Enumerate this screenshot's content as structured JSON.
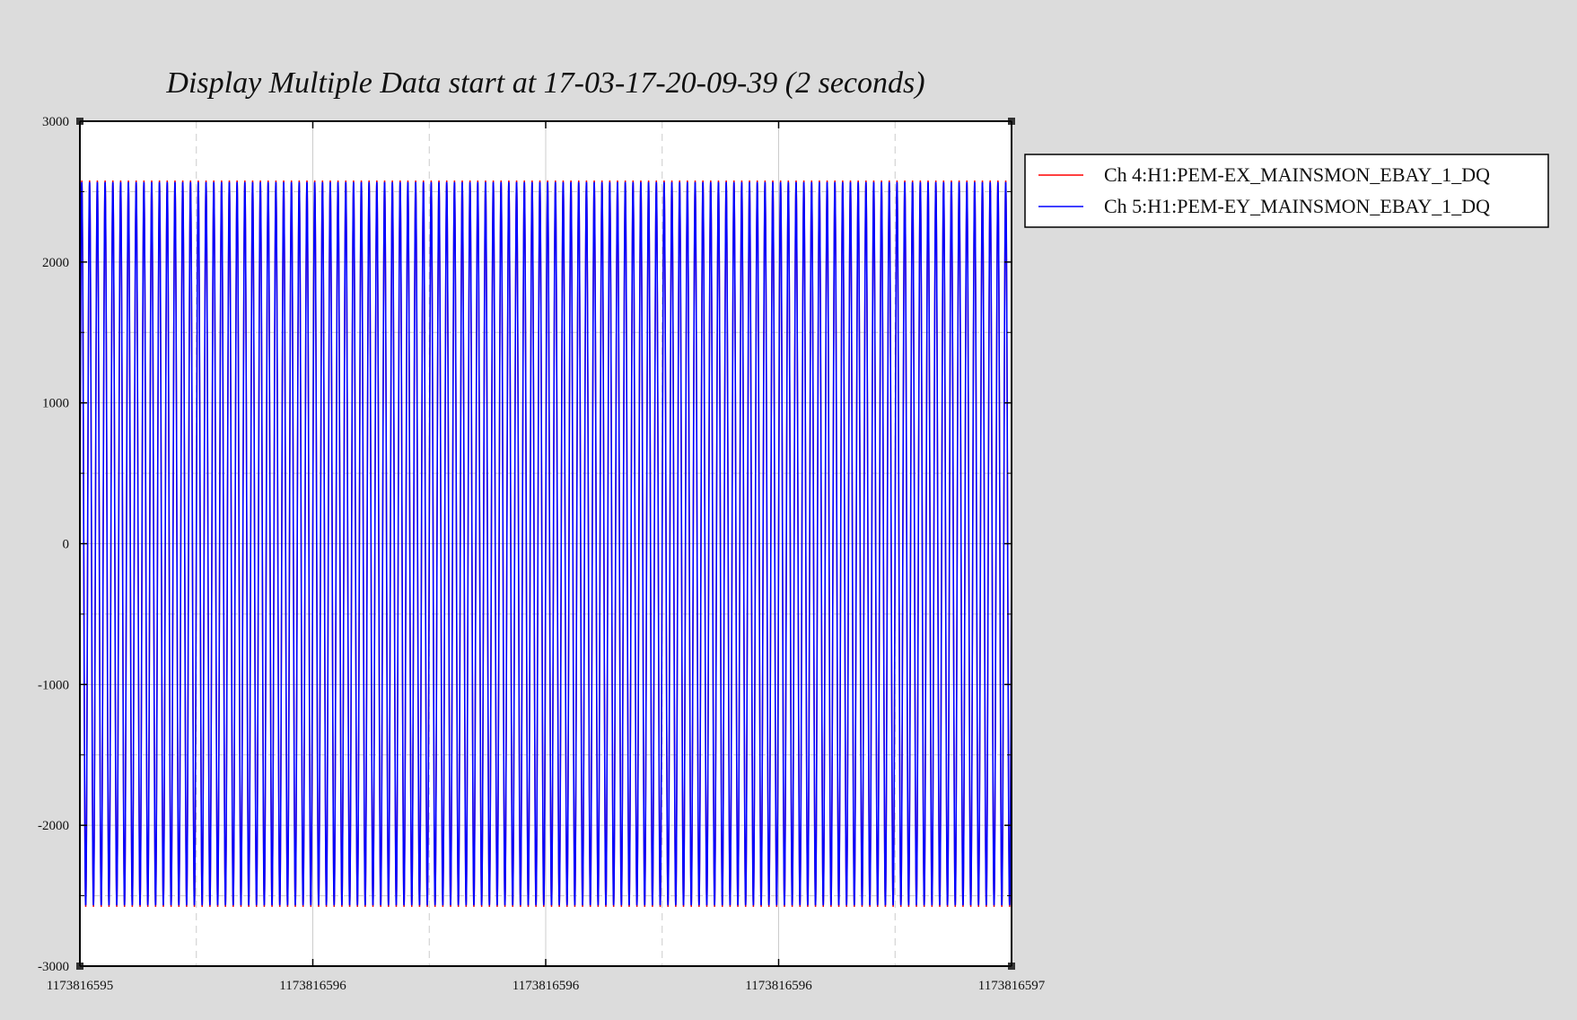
{
  "chart_data": {
    "type": "line",
    "title": "Display Multiple Data start at 17-03-17-20-09-39 (2 seconds)",
    "xlabel": "",
    "ylabel": "",
    "xlim": [
      1173816595,
      1173816597
    ],
    "ylim": [
      -3000,
      3000
    ],
    "x_tick_labels": [
      "1173816595",
      "1173816596",
      "1173816596",
      "1173816596",
      "1173816597"
    ],
    "y_ticks": [
      3000,
      2000,
      1000,
      0,
      -1000,
      -2000,
      -3000
    ],
    "y_tick_labels": [
      "3000",
      "2000",
      "1000",
      "0",
      "-1000",
      "-2000",
      "-3000"
    ],
    "grid": true,
    "legend_position": "right",
    "series": [
      {
        "name": "Ch 4:H1:PEM-EX_MAINSMON_EBAY_1_DQ",
        "color": "#ff0000",
        "waveform": "sine",
        "frequency_hz": 60,
        "amplitude": 2580,
        "duration_s": 2
      },
      {
        "name": "Ch 5:H1:PEM-EY_MAINSMON_EBAY_1_DQ",
        "color": "#0000ff",
        "waveform": "sine",
        "frequency_hz": 60,
        "amplitude": 2570,
        "duration_s": 2
      }
    ]
  }
}
